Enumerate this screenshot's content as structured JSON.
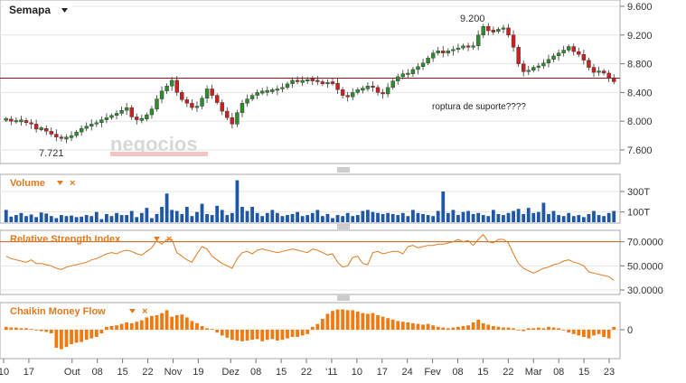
{
  "toolbar": {
    "period_label": "Semapa",
    "dropdown_icon": "caret-down-icon"
  },
  "chart_data": [
    {
      "type": "candlestick",
      "panel": "price",
      "title": "",
      "watermark": "negocios",
      "watermark_sub": "ONLINE",
      "y_ticks": [
        "9.600",
        "9.200",
        "8.800",
        "8.400",
        "8.000",
        "7.600"
      ],
      "ylim": [
        7.45,
        9.65
      ],
      "support_level": 8.6,
      "annotations": {
        "high_label": "9.200",
        "low_label": "7.721",
        "note": "roptura de suporte????"
      },
      "colors": {
        "up": "#2e8b2e",
        "down": "#cc1f1f",
        "support": "#a01010"
      },
      "close": [
        8.03,
        8.0,
        8.0,
        8.01,
        7.98,
        7.96,
        7.89,
        7.9,
        7.86,
        7.82,
        7.78,
        7.76,
        7.77,
        7.8,
        7.85,
        7.9,
        7.93,
        7.96,
        7.98,
        8.02,
        8.05,
        8.08,
        8.11,
        8.15,
        8.19,
        8.06,
        8.02,
        8.03,
        8.09,
        8.17,
        8.31,
        8.42,
        8.49,
        8.57,
        8.4,
        8.3,
        8.25,
        8.19,
        8.21,
        8.32,
        8.45,
        8.36,
        8.26,
        8.14,
        8.05,
        7.96,
        8.12,
        8.25,
        8.31,
        8.36,
        8.4,
        8.41,
        8.42,
        8.43,
        8.45,
        8.47,
        8.52,
        8.57,
        8.55,
        8.56,
        8.58,
        8.57,
        8.55,
        8.52,
        8.54,
        8.53,
        8.44,
        8.36,
        8.34,
        8.4,
        8.44,
        8.45,
        8.49,
        8.47,
        8.4,
        8.38,
        8.47,
        8.56,
        8.62,
        8.66,
        8.66,
        8.72,
        8.76,
        8.81,
        8.88,
        8.95,
        8.98,
        8.95,
        8.98,
        9.0,
        9.02,
        9.05,
        9.03,
        9.05,
        9.2,
        9.32,
        9.26,
        9.25,
        9.28,
        9.3,
        9.2,
        9.03,
        8.8,
        8.69,
        8.71,
        8.75,
        8.77,
        8.81,
        8.86,
        8.91,
        8.95,
        8.99,
        9.04,
        8.97,
        8.93,
        8.85,
        8.75,
        8.68,
        8.7,
        8.67,
        8.6,
        8.55
      ]
    },
    {
      "type": "bar",
      "panel": "volume",
      "title": "Volume",
      "y_ticks": [
        "300T",
        "100T"
      ],
      "ylim": [
        0,
        450
      ],
      "color": "#1f57a8",
      "values": [
        120,
        55,
        70,
        90,
        60,
        75,
        50,
        95,
        85,
        60,
        40,
        70,
        60,
        65,
        50,
        55,
        70,
        60,
        100,
        30,
        80,
        60,
        90,
        70,
        70,
        110,
        50,
        90,
        140,
        40,
        80,
        150,
        280,
        120,
        110,
        80,
        150,
        60,
        100,
        180,
        80,
        70,
        160,
        120,
        70,
        90,
        410,
        150,
        110,
        150,
        90,
        60,
        90,
        120,
        90,
        60,
        70,
        80,
        100,
        60,
        70,
        90,
        120,
        60,
        80,
        40,
        70,
        60,
        90,
        60,
        70,
        110,
        120,
        100,
        90,
        80,
        90,
        80,
        70,
        90,
        60,
        120,
        90,
        80,
        70,
        60,
        110,
        300,
        90,
        120,
        70,
        100,
        110,
        80,
        90,
        70,
        60,
        120,
        80,
        70,
        90,
        110,
        130,
        80,
        140,
        90,
        100,
        190,
        80,
        110,
        70,
        60,
        90,
        60,
        70,
        50,
        80,
        110,
        70,
        60,
        90,
        110
      ]
    },
    {
      "type": "line",
      "panel": "rsi",
      "title": "Relative Strength Index",
      "y_ticks": [
        "70.0000",
        "50.0000",
        "30.0000"
      ],
      "ylim": [
        27,
        78
      ],
      "reference_level": 70,
      "color": "#e07a1f",
      "values": [
        58,
        56,
        55,
        54,
        53,
        55,
        52,
        52,
        51,
        50,
        48,
        47,
        49,
        50,
        51,
        52,
        53,
        55,
        56,
        58,
        60,
        61,
        60,
        62,
        63,
        62,
        60,
        59,
        62,
        65,
        71,
        68,
        72,
        72,
        61,
        58,
        55,
        53,
        60,
        66,
        64,
        58,
        55,
        52,
        50,
        48,
        56,
        61,
        62,
        60,
        63,
        64,
        63,
        62,
        61,
        62,
        63,
        64,
        63,
        62,
        61,
        64,
        63,
        61,
        59,
        60,
        53,
        49,
        50,
        57,
        58,
        52,
        51,
        61,
        62,
        60,
        61,
        62,
        62,
        60,
        66,
        67,
        65,
        66,
        67,
        67,
        68,
        68,
        69,
        70,
        72,
        70,
        71,
        67,
        72,
        76,
        70,
        69,
        72,
        72,
        69,
        60,
        52,
        48,
        46,
        44,
        46,
        48,
        49,
        51,
        52,
        54,
        55,
        53,
        52,
        50,
        45,
        44,
        43,
        42,
        41,
        38
      ]
    },
    {
      "type": "bar",
      "panel": "cmf",
      "title": "Chaikin Money Flow",
      "y_ticks": [
        "0"
      ],
      "ylim": [
        -0.35,
        0.35
      ],
      "color": "#f07a10",
      "values": [
        0.04,
        0.03,
        0.03,
        0.02,
        0.02,
        0.01,
        0.0,
        -0.02,
        -0.03,
        -0.05,
        -0.25,
        -0.27,
        -0.24,
        -0.2,
        -0.18,
        -0.17,
        -0.14,
        -0.12,
        -0.1,
        -0.05,
        0.04,
        0.05,
        0.06,
        0.08,
        0.1,
        0.09,
        0.11,
        0.13,
        0.17,
        0.19,
        0.2,
        0.23,
        0.27,
        0.18,
        0.2,
        0.21,
        0.17,
        0.12,
        0.09,
        0.05,
        0.02,
        0.01,
        -0.04,
        -0.08,
        -0.11,
        -0.14,
        -0.15,
        -0.16,
        -0.15,
        -0.14,
        -0.13,
        -0.16,
        -0.14,
        -0.13,
        -0.15,
        -0.14,
        -0.12,
        -0.1,
        -0.1,
        -0.08,
        -0.06,
        0.04,
        0.08,
        0.15,
        0.22,
        0.26,
        0.28,
        0.28,
        0.27,
        0.27,
        0.25,
        0.23,
        0.22,
        0.23,
        0.2,
        0.18,
        0.16,
        0.14,
        0.12,
        0.11,
        0.1,
        0.09,
        0.08,
        0.07,
        0.08,
        0.06,
        0.04,
        0.03,
        0.02,
        0.03,
        0.04,
        0.05,
        0.06,
        0.1,
        0.14,
        0.09,
        0.07,
        0.05,
        0.04,
        0.03,
        0.03,
        0.02,
        0.0,
        -0.02,
        0.02,
        0.02,
        0.03,
        0.02,
        0.04,
        0.03,
        0.02,
        0.0,
        -0.04,
        -0.06,
        -0.08,
        -0.1,
        -0.12,
        -0.08,
        -0.06,
        -0.1,
        -0.12,
        0.04
      ]
    }
  ],
  "x_axis": {
    "labels": [
      "10",
      "17",
      "Out",
      "08",
      "15",
      "22",
      "Nov",
      "19",
      "Dez",
      "08",
      "15",
      "22",
      "'11",
      "10",
      "17",
      "24",
      "Fev",
      "08",
      "15",
      "22",
      "Mar",
      "08",
      "15",
      "23"
    ],
    "bar_index": [
      0,
      7,
      19,
      26,
      33,
      40,
      47,
      54,
      63,
      70,
      77,
      84,
      91,
      98,
      105,
      112,
      119,
      126,
      133,
      140,
      147,
      154,
      161,
      168
    ]
  },
  "panel_controls": {
    "menu_icon": "caret-down-icon",
    "close_icon": "close-icon",
    "resize_icon": "drag-handle-icon"
  }
}
